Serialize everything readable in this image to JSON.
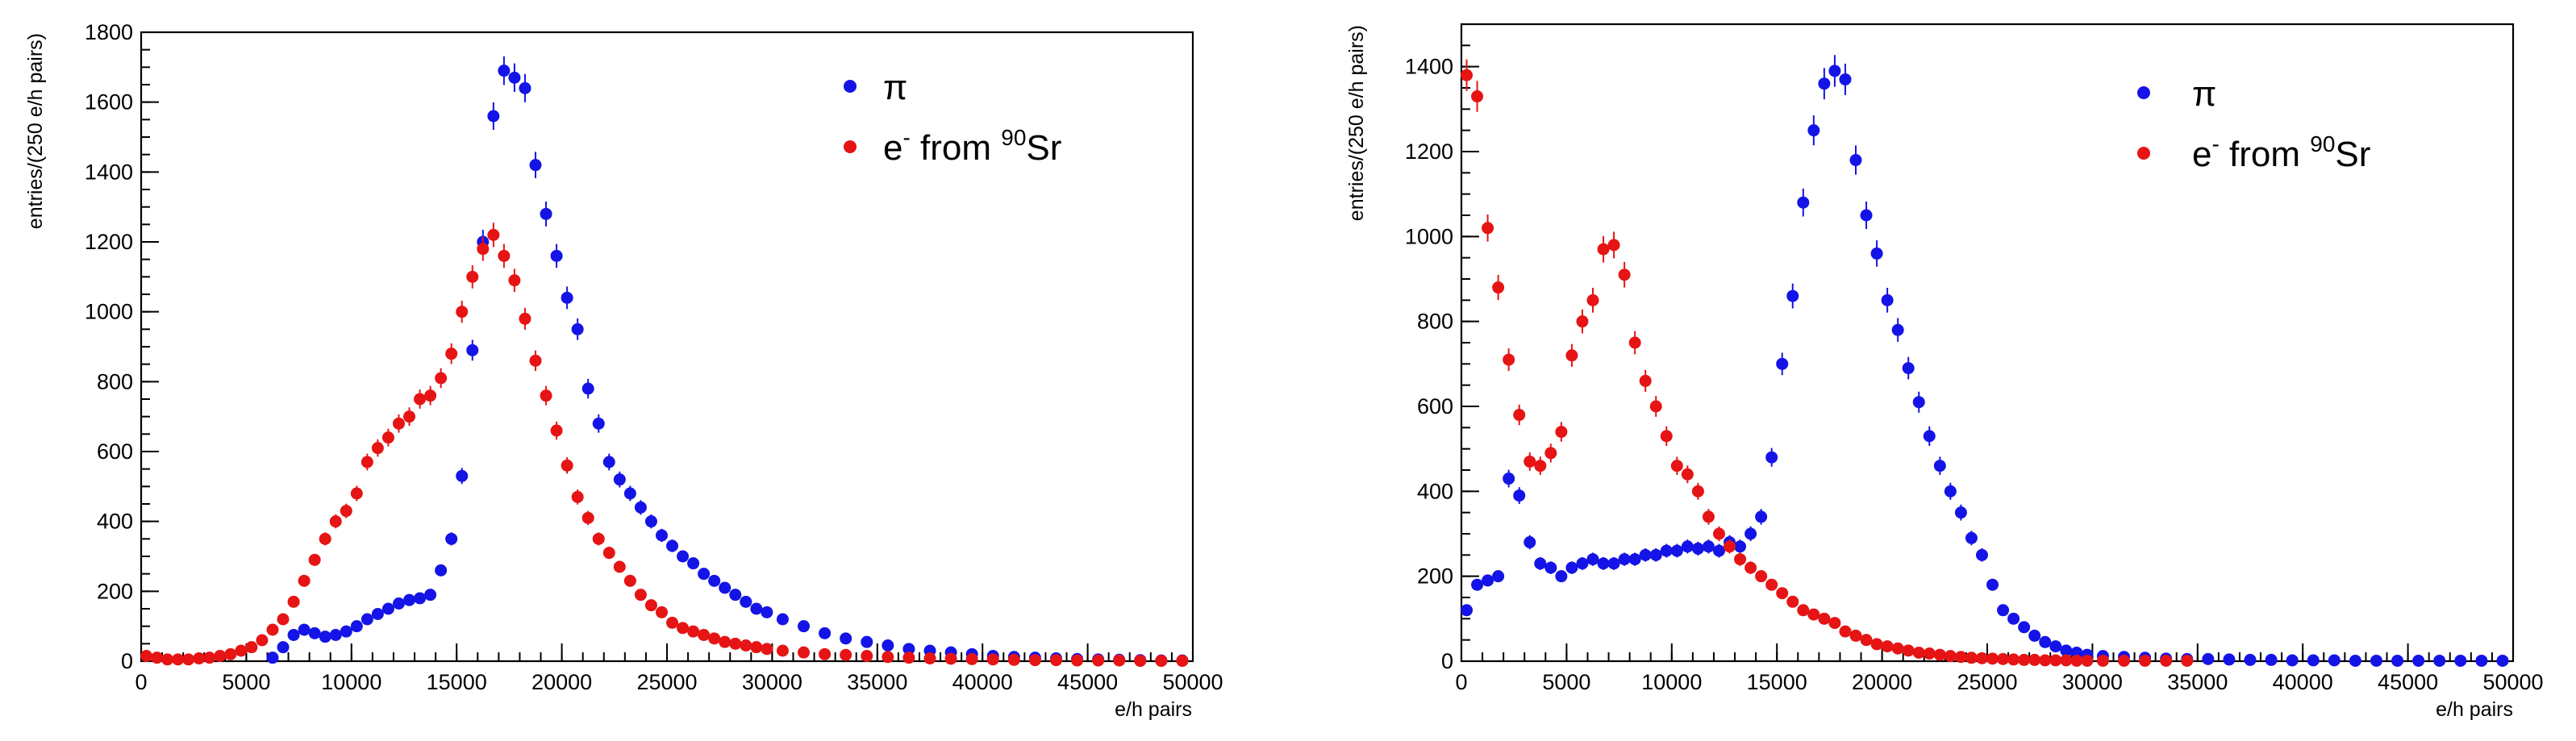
{
  "chart_data": [
    {
      "type": "scatter",
      "xlabel": "e/h pairs",
      "ylabel": "entries/(250 e/h pairs)",
      "xlim": [
        0,
        50000
      ],
      "ylim": [
        0,
        1800
      ],
      "xticks": [
        0,
        5000,
        10000,
        15000,
        20000,
        25000,
        30000,
        35000,
        40000,
        45000,
        50000
      ],
      "yticks": [
        0,
        200,
        400,
        600,
        800,
        1000,
        1200,
        1400,
        1600,
        1800
      ],
      "xtick_labels": [
        "0",
        "5000",
        "10000",
        "15000",
        "20000",
        "25000",
        "30000",
        "35000",
        "40000",
        "45000",
        "50000"
      ],
      "ytick_labels": [
        "0",
        "200",
        "400",
        "600",
        "800",
        "1000",
        "1200",
        "1400",
        "1600",
        "1800"
      ],
      "legend": {
        "position": "top-right",
        "entries": [
          {
            "symbol": "π",
            "color": "#1414e6"
          },
          {
            "prefix": "e",
            "prefix_sup": "-",
            "middle": " from ",
            "middle_sup": "90",
            "suffix": "Sr",
            "color": "#e61414"
          }
        ]
      },
      "series": [
        {
          "name": "π",
          "color": "#1414e6",
          "x": [
            6250,
            6750,
            7250,
            7750,
            8250,
            8750,
            9250,
            9750,
            10250,
            10750,
            11250,
            11750,
            12250,
            12750,
            13250,
            13750,
            14250,
            14750,
            15250,
            15750,
            16250,
            16750,
            17250,
            17750,
            18250,
            18750,
            19250,
            19750,
            20250,
            20750,
            21250,
            21750,
            22250,
            22750,
            23250,
            23750,
            24250,
            24750,
            25250,
            25750,
            26250,
            26750,
            27250,
            27750,
            28250,
            28750,
            29250,
            29750,
            30500,
            31500,
            32500,
            33500,
            34500,
            35500,
            36500,
            37500,
            38500,
            39500,
            40500,
            41500,
            42500,
            43500,
            44500,
            45500,
            46500,
            47500,
            48500,
            49500
          ],
          "y": [
            10,
            40,
            75,
            90,
            80,
            70,
            75,
            85,
            100,
            120,
            135,
            150,
            165,
            175,
            180,
            190,
            260,
            350,
            530,
            890,
            1200,
            1560,
            1690,
            1670,
            1640,
            1420,
            1280,
            1160,
            1040,
            950,
            780,
            680,
            570,
            520,
            480,
            440,
            400,
            360,
            330,
            300,
            280,
            250,
            230,
            210,
            190,
            170,
            150,
            140,
            120,
            100,
            80,
            65,
            55,
            45,
            35,
            30,
            25,
            20,
            15,
            12,
            10,
            8,
            6,
            5,
            4,
            3,
            2,
            2
          ]
        },
        {
          "name": "e- from 90Sr",
          "color": "#e61414",
          "x": [
            250,
            750,
            1250,
            1750,
            2250,
            2750,
            3250,
            3750,
            4250,
            4750,
            5250,
            5750,
            6250,
            6750,
            7250,
            7750,
            8250,
            8750,
            9250,
            9750,
            10250,
            10750,
            11250,
            11750,
            12250,
            12750,
            13250,
            13750,
            14250,
            14750,
            15250,
            15750,
            16250,
            16750,
            17250,
            17750,
            18250,
            18750,
            19250,
            19750,
            20250,
            20750,
            21250,
            21750,
            22250,
            22750,
            23250,
            23750,
            24250,
            24750,
            25250,
            25750,
            26250,
            26750,
            27250,
            27750,
            28250,
            28750,
            29250,
            29750,
            30500,
            31500,
            32500,
            33500,
            34500,
            35500,
            36500,
            37500,
            38500,
            39500,
            40500,
            41500,
            42500,
            43500,
            44500,
            45500,
            46500,
            47500,
            48500,
            49500
          ],
          "y": [
            15,
            10,
            5,
            5,
            5,
            8,
            10,
            15,
            20,
            30,
            40,
            60,
            90,
            120,
            170,
            230,
            290,
            350,
            400,
            430,
            480,
            570,
            610,
            640,
            680,
            700,
            750,
            760,
            810,
            880,
            1000,
            1100,
            1180,
            1220,
            1160,
            1090,
            980,
            860,
            760,
            660,
            560,
            470,
            410,
            350,
            310,
            270,
            230,
            190,
            160,
            140,
            110,
            95,
            85,
            75,
            65,
            55,
            50,
            45,
            40,
            35,
            30,
            25,
            20,
            18,
            15,
            12,
            10,
            8,
            7,
            6,
            5,
            4,
            3,
            3,
            2,
            2,
            2,
            1,
            1,
            1
          ]
        }
      ]
    },
    {
      "type": "scatter",
      "xlabel": "e/h pairs",
      "ylabel": "entries/(250 e/h pairs)",
      "xlim": [
        0,
        50000
      ],
      "ylim": [
        0,
        1500
      ],
      "xticks": [
        0,
        5000,
        10000,
        15000,
        20000,
        25000,
        30000,
        35000,
        40000,
        45000,
        50000
      ],
      "yticks": [
        0,
        200,
        400,
        600,
        800,
        1000,
        1200,
        1400
      ],
      "xtick_labels": [
        "0",
        "5000",
        "10000",
        "15000",
        "20000",
        "25000",
        "30000",
        "35000",
        "40000",
        "45000",
        "50000"
      ],
      "ytick_labels": [
        "0",
        "200",
        "400",
        "600",
        "800",
        "1000",
        "1200",
        "1400"
      ],
      "legend": {
        "position": "top-right",
        "entries": [
          {
            "symbol": "π",
            "color": "#1414e6"
          },
          {
            "prefix": "e",
            "prefix_sup": "-",
            "middle": " from ",
            "middle_sup": "90",
            "suffix": "Sr",
            "color": "#e61414"
          }
        ]
      },
      "series": [
        {
          "name": "π",
          "color": "#1414e6",
          "x": [
            250,
            750,
            1250,
            1750,
            2250,
            2750,
            3250,
            3750,
            4250,
            4750,
            5250,
            5750,
            6250,
            6750,
            7250,
            7750,
            8250,
            8750,
            9250,
            9750,
            10250,
            10750,
            11250,
            11750,
            12250,
            12750,
            13250,
            13750,
            14250,
            14750,
            15250,
            15750,
            16250,
            16750,
            17250,
            17750,
            18250,
            18750,
            19250,
            19750,
            20250,
            20750,
            21250,
            21750,
            22250,
            22750,
            23250,
            23750,
            24250,
            24750,
            25250,
            25750,
            26250,
            26750,
            27250,
            27750,
            28250,
            28750,
            29250,
            29750,
            30500,
            31500,
            32500,
            33500,
            34500,
            35500,
            36500,
            37500,
            38500,
            39500,
            40500,
            41500,
            42500,
            43500,
            44500,
            45500,
            46500,
            47500,
            48500,
            49500
          ],
          "y": [
            120,
            180,
            190,
            200,
            430,
            390,
            280,
            230,
            220,
            200,
            220,
            230,
            240,
            230,
            230,
            240,
            240,
            250,
            250,
            260,
            260,
            270,
            265,
            270,
            260,
            280,
            270,
            300,
            340,
            480,
            700,
            860,
            1080,
            1250,
            1360,
            1390,
            1370,
            1180,
            1050,
            960,
            850,
            780,
            690,
            610,
            530,
            460,
            400,
            350,
            290,
            250,
            180,
            120,
            100,
            80,
            60,
            45,
            35,
            25,
            20,
            15,
            12,
            10,
            8,
            6,
            5,
            5,
            4,
            3,
            3,
            2,
            2,
            2,
            1,
            1,
            1,
            1,
            1,
            1,
            1,
            1
          ]
        },
        {
          "name": "e- from 90Sr",
          "color": "#e61414",
          "x": [
            250,
            750,
            1250,
            1750,
            2250,
            2750,
            3250,
            3750,
            4250,
            4750,
            5250,
            5750,
            6250,
            6750,
            7250,
            7750,
            8250,
            8750,
            9250,
            9750,
            10250,
            10750,
            11250,
            11750,
            12250,
            12750,
            13250,
            13750,
            14250,
            14750,
            15250,
            15750,
            16250,
            16750,
            17250,
            17750,
            18250,
            18750,
            19250,
            19750,
            20250,
            20750,
            21250,
            21750,
            22250,
            22750,
            23250,
            23750,
            24250,
            24750,
            25250,
            25750,
            26250,
            26750,
            27250,
            27750,
            28250,
            28750,
            29250,
            29750,
            30500,
            31500,
            32500,
            33500,
            34500
          ],
          "y": [
            1380,
            1330,
            1020,
            880,
            710,
            580,
            470,
            460,
            490,
            540,
            720,
            800,
            850,
            970,
            980,
            910,
            750,
            660,
            600,
            530,
            460,
            440,
            400,
            340,
            300,
            270,
            240,
            220,
            200,
            180,
            160,
            140,
            120,
            110,
            100,
            90,
            70,
            60,
            50,
            40,
            35,
            30,
            25,
            20,
            18,
            15,
            12,
            10,
            8,
            7,
            6,
            5,
            4,
            3,
            3,
            2,
            2,
            2,
            1,
            1,
            1,
            1,
            1,
            1,
            1
          ]
        }
      ]
    }
  ]
}
